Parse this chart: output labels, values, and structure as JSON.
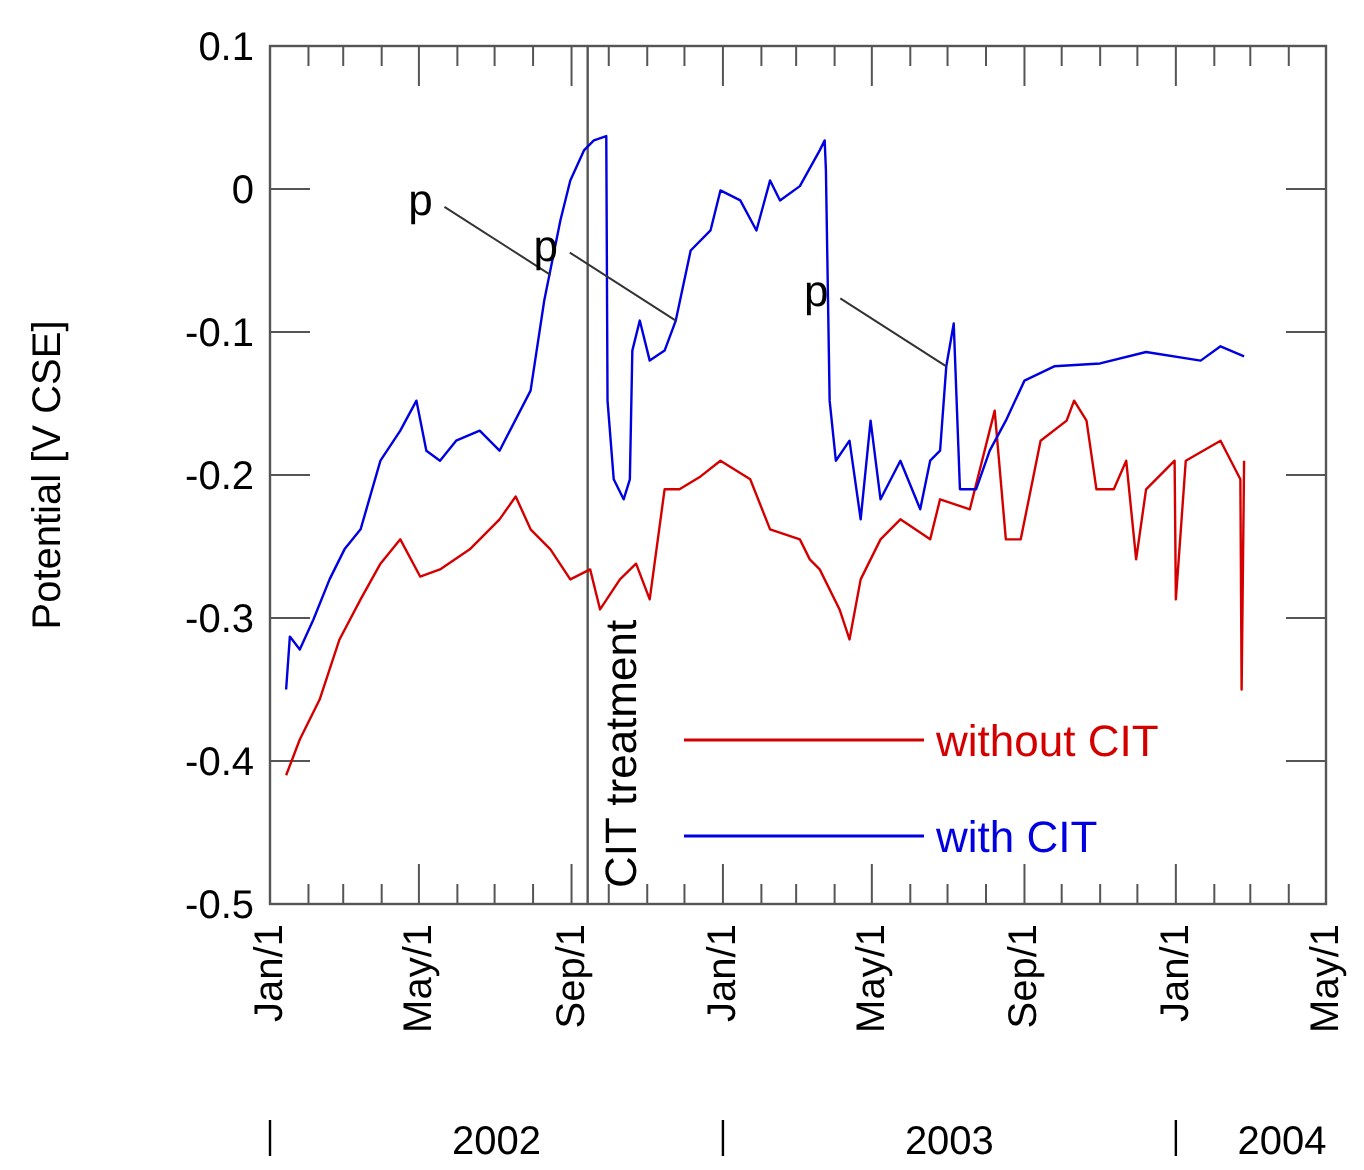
{
  "chart_data": {
    "type": "line",
    "ylabel": "Potential [V CSE]",
    "xlim": [
      "2002-01-01",
      "2004-05-01"
    ],
    "ylim": [
      -0.5,
      0.1
    ],
    "xticks": [
      {
        "value": "2002-01-01",
        "label": "Jan/1"
      },
      {
        "value": "2002-02-01",
        "label": null
      },
      {
        "value": "2002-03-01",
        "label": null
      },
      {
        "value": "2002-04-01",
        "label": null
      },
      {
        "value": "2002-05-01",
        "label": "May/1"
      },
      {
        "value": "2002-06-01",
        "label": null
      },
      {
        "value": "2002-07-01",
        "label": null
      },
      {
        "value": "2002-08-01",
        "label": null
      },
      {
        "value": "2002-09-01",
        "label": "Sep/1"
      },
      {
        "value": "2002-10-01",
        "label": null
      },
      {
        "value": "2002-11-01",
        "label": null
      },
      {
        "value": "2002-12-01",
        "label": null
      },
      {
        "value": "2003-01-01",
        "label": "Jan/1"
      },
      {
        "value": "2003-02-01",
        "label": null
      },
      {
        "value": "2003-03-01",
        "label": null
      },
      {
        "value": "2003-04-01",
        "label": null
      },
      {
        "value": "2003-05-01",
        "label": "May/1"
      },
      {
        "value": "2003-06-01",
        "label": null
      },
      {
        "value": "2003-07-01",
        "label": null
      },
      {
        "value": "2003-08-01",
        "label": null
      },
      {
        "value": "2003-09-01",
        "label": "Sep/1"
      },
      {
        "value": "2003-10-01",
        "label": null
      },
      {
        "value": "2003-11-01",
        "label": null
      },
      {
        "value": "2003-12-01",
        "label": null
      },
      {
        "value": "2004-01-01",
        "label": "Jan/1"
      },
      {
        "value": "2004-02-01",
        "label": null
      },
      {
        "value": "2004-03-01",
        "label": null
      },
      {
        "value": "2004-04-01",
        "label": null
      },
      {
        "value": "2004-05-01",
        "label": "May/1"
      }
    ],
    "yticks": [
      -0.5,
      -0.4,
      -0.3,
      -0.2,
      -0.1,
      0,
      0.1
    ],
    "grid": false,
    "legend": "bottom right",
    "line_style": "solid",
    "marker": "none",
    "ref_lines": [
      {
        "axis": "x",
        "value": "2002-09-14",
        "label": "CIT treatment",
        "color": "#555555"
      }
    ],
    "annotations": [
      {
        "text": "p",
        "x": "2002-08-15",
        "y": -0.06
      },
      {
        "text": "p",
        "x": "2002-11-24",
        "y": -0.092
      },
      {
        "text": "p",
        "x": "2003-06-30",
        "y": -0.124
      },
      "2002",
      "2003",
      "2004"
    ],
    "series": [
      {
        "name": "without CIT",
        "color": "#d40000",
        "x": [
          "2002-01-14",
          "2002-01-25",
          "2002-02-10",
          "2002-02-26",
          "2002-03-15",
          "2002-03-31",
          "2002-04-16",
          "2002-05-02",
          "2002-05-18",
          "2002-06-11",
          "2002-07-05",
          "2002-07-18",
          "2002-07-30",
          "2002-08-15",
          "2002-08-31",
          "2002-09-16",
          "2002-09-24",
          "2002-10-10",
          "2002-10-23",
          "2002-11-03",
          "2002-11-15",
          "2002-11-27",
          "2002-12-14",
          "2002-12-30",
          "2003-01-23",
          "2003-02-08",
          "2003-03-04",
          "2003-03-12",
          "2003-03-20",
          "2003-04-05",
          "2003-04-13",
          "2003-04-22",
          "2003-05-08",
          "2003-05-24",
          "2003-06-17",
          "2003-06-25",
          "2003-07-19",
          "2003-08-08",
          "2003-08-17",
          "2003-08-29",
          "2003-09-14",
          "2003-10-05",
          "2003-10-11",
          "2003-10-21",
          "2003-10-29",
          "2003-11-12",
          "2003-11-22",
          "2003-11-30",
          "2003-12-08",
          "2003-12-31",
          "2004-01-01",
          "2004-01-09",
          "2004-02-06",
          "2004-02-22",
          "2004-02-23",
          "2004-02-25"
        ],
        "values": [
          -0.41,
          -0.385,
          -0.357,
          -0.315,
          -0.287,
          -0.262,
          -0.245,
          -0.271,
          -0.266,
          -0.252,
          -0.231,
          -0.215,
          -0.238,
          -0.252,
          -0.273,
          -0.266,
          -0.294,
          -0.273,
          -0.262,
          -0.287,
          -0.21,
          -0.21,
          -0.201,
          -0.19,
          -0.203,
          -0.238,
          -0.245,
          -0.259,
          -0.266,
          -0.294,
          -0.315,
          -0.273,
          -0.245,
          -0.231,
          -0.245,
          -0.217,
          -0.224,
          -0.155,
          -0.245,
          -0.245,
          -0.176,
          -0.162,
          -0.148,
          -0.162,
          -0.21,
          -0.21,
          -0.19,
          -0.259,
          -0.21,
          -0.19,
          -0.287,
          -0.19,
          -0.176,
          -0.203,
          -0.35,
          -0.19
        ]
      },
      {
        "name": "with CIT",
        "color": "#0000e0",
        "x": [
          "2002-01-14",
          "2002-01-17",
          "2002-01-25",
          "2002-02-05",
          "2002-02-18",
          "2002-03-02",
          "2002-03-15",
          "2002-03-31",
          "2002-04-16",
          "2002-04-29",
          "2002-05-07",
          "2002-05-18",
          "2002-05-31",
          "2002-06-19",
          "2002-07-05",
          "2002-07-30",
          "2002-08-10",
          "2002-08-23",
          "2002-08-31",
          "2002-09-11",
          "2002-09-19",
          "2002-09-29",
          "2002-09-30",
          "2002-10-05",
          "2002-10-13",
          "2002-10-18",
          "2002-10-20",
          "2002-10-26",
          "2002-11-03",
          "2002-11-15",
          "2002-11-24",
          "2002-12-06",
          "2002-12-22",
          "2002-12-30",
          "2003-01-15",
          "2003-01-28",
          "2003-02-08",
          "2003-02-16",
          "2003-03-04",
          "2003-03-20",
          "2003-03-24",
          "2003-03-25",
          "2003-03-28",
          "2003-04-02",
          "2003-04-13",
          "2003-04-22",
          "2003-04-30",
          "2003-05-08",
          "2003-05-24",
          "2003-06-09",
          "2003-06-17",
          "2003-06-25",
          "2003-06-30",
          "2003-07-06",
          "2003-07-11",
          "2003-07-24",
          "2003-08-04",
          "2003-08-17",
          "2003-09-01",
          "2003-09-25",
          "2003-11-01",
          "2003-12-08",
          "2004-01-21",
          "2004-02-06",
          "2004-02-25"
        ],
        "values": [
          -0.35,
          -0.313,
          -0.322,
          -0.301,
          -0.273,
          -0.252,
          -0.238,
          -0.19,
          -0.169,
          -0.148,
          -0.183,
          -0.19,
          -0.176,
          -0.169,
          -0.183,
          -0.141,
          -0.078,
          -0.022,
          0.006,
          0.027,
          0.034,
          0.037,
          -0.148,
          -0.203,
          -0.217,
          -0.203,
          -0.113,
          -0.092,
          -0.12,
          -0.113,
          -0.092,
          -0.043,
          -0.029,
          -0.001,
          -0.008,
          -0.029,
          0.006,
          -0.008,
          0.002,
          0.027,
          0.034,
          0.013,
          -0.148,
          -0.19,
          -0.176,
          -0.231,
          -0.162,
          -0.217,
          -0.19,
          -0.224,
          -0.19,
          -0.183,
          -0.124,
          -0.094,
          -0.21,
          -0.21,
          -0.183,
          -0.162,
          -0.134,
          -0.124,
          -0.122,
          -0.114,
          -0.12,
          -0.11,
          -0.117
        ]
      }
    ]
  }
}
